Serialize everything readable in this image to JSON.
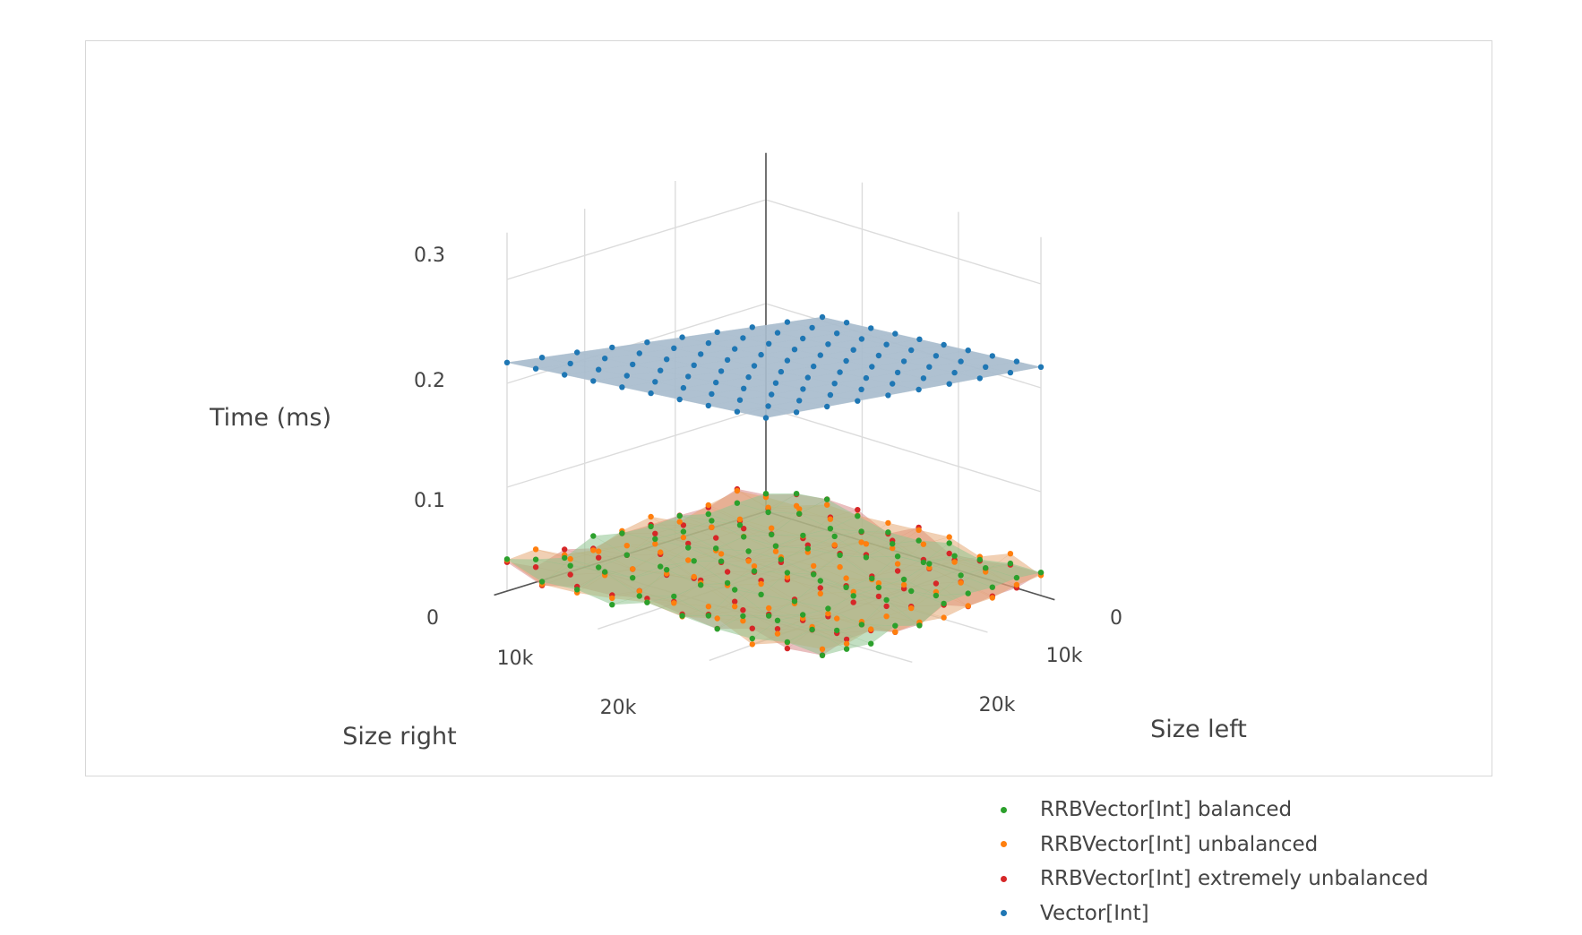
{
  "chart_data": {
    "type": "surface3d",
    "zlabel": "Time (ms)",
    "xlabel": "Size left",
    "ylabel": "Size right",
    "z_ticks": [
      "0",
      "0.1",
      "0.2",
      "0.3"
    ],
    "x_ticks": [
      "0",
      "10k",
      "20k"
    ],
    "y_ticks": [
      "10k",
      "20k"
    ],
    "grid": true,
    "legend_position": "bottom-right",
    "series": [
      {
        "name": "RRBVector[Int] balanced",
        "color": "#2ca02c",
        "surface_color": "#8fc58f",
        "approx_time_ms": "about 0.01–0.03 across all sizes"
      },
      {
        "name": "RRBVector[Int] unbalanced",
        "color": "#ff7f0e",
        "surface_color": "#e3a16a",
        "approx_time_ms": "about 0.01–0.04 across all sizes"
      },
      {
        "name": "RRBVector[Int] extremely unbalanced",
        "color": "#d62728",
        "surface_color": "#d98a8a",
        "approx_time_ms": "about 0.01–0.04 across all sizes"
      },
      {
        "name": "Vector[Int]",
        "color": "#1f77b4",
        "surface_color": "#a8bccd",
        "approx_time_ms": "grows linearly from ~0.09 at (0,0) to ~0.35 at (27k,27k)"
      }
    ]
  }
}
